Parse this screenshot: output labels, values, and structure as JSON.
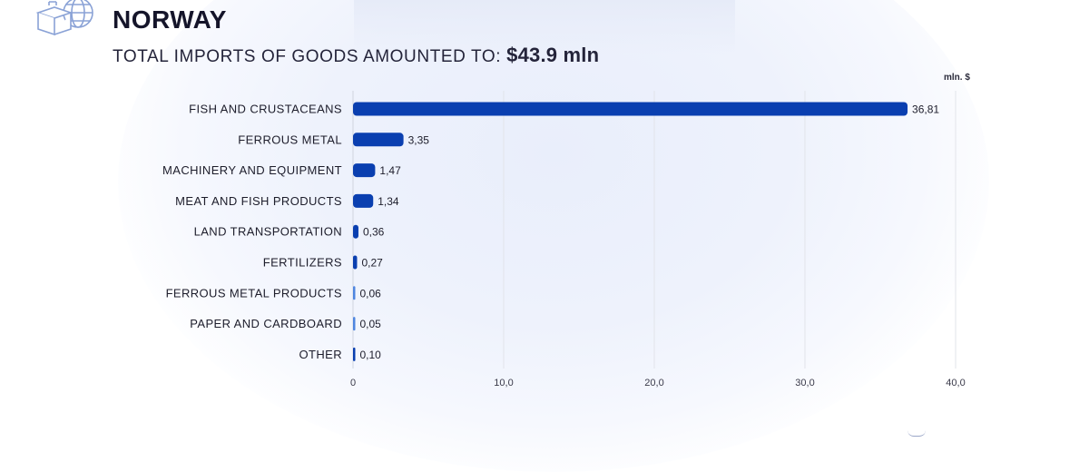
{
  "header": {
    "country": "NORWAY",
    "subtitle_text": "TOTAL IMPORTS OF GOODS AMOUNTED TO:",
    "subtitle_amount": "$43.9 mln"
  },
  "colors": {
    "bar_primary": "#0a3fb0",
    "bar_light": "#4f86e0",
    "grid": "#e2e4ea",
    "text": "#1d1d2b"
  },
  "chart_data": {
    "type": "bar",
    "orientation": "horizontal",
    "unit_label": "mln. $",
    "categories": [
      "FISH AND CRUSTACEANS",
      "FERROUS METAL",
      "MACHINERY AND EQUIPMENT",
      "MEAT AND FISH PRODUCTS",
      "LAND TRANSPORTATION",
      "FERTILIZERS",
      "FERROUS METAL PRODUCTS",
      "PAPER AND CARDBOARD",
      "OTHER"
    ],
    "values": [
      36.81,
      3.35,
      1.47,
      1.34,
      0.36,
      0.27,
      0.06,
      0.05,
      0.1
    ],
    "value_labels": [
      "36,81",
      "3,35",
      "1,47",
      "1,34",
      "0,36",
      "0,27",
      "0,06",
      "0,05",
      "0,10"
    ],
    "xlim": [
      0,
      40
    ],
    "x_ticks": [
      0,
      10,
      20,
      30,
      40
    ],
    "x_tick_labels": [
      "0",
      "10,0",
      "20,0",
      "30,0",
      "40,0"
    ],
    "grid": true
  }
}
